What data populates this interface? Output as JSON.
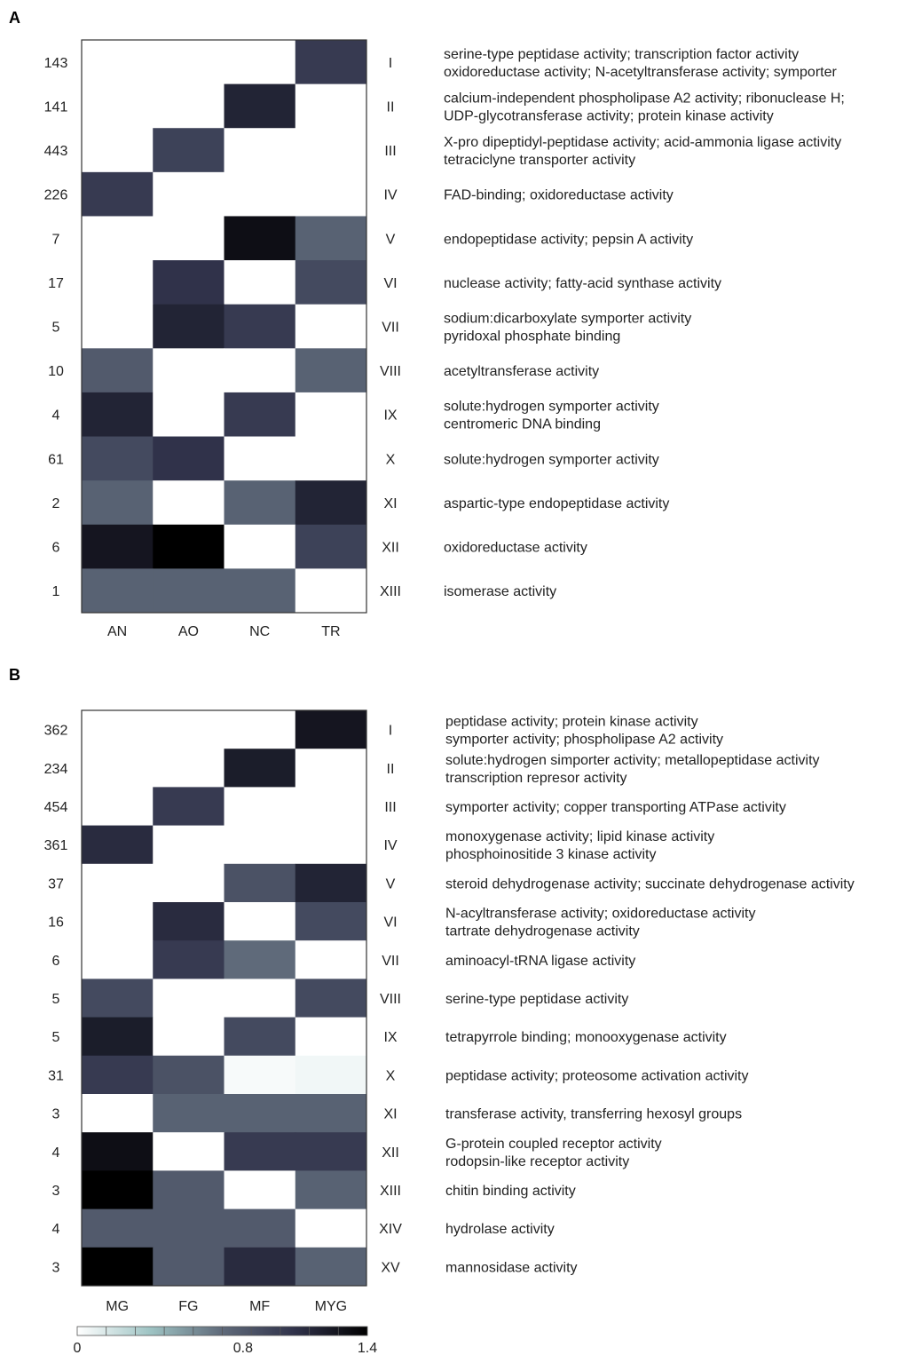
{
  "chart_data": [
    {
      "type": "heatmap",
      "panel": "A",
      "columns": [
        "AN",
        "AO",
        "NC",
        "TR"
      ],
      "rows": [
        {
          "cluster": "I",
          "count": "143",
          "values": [
            0,
            0,
            0,
            1.0
          ],
          "annotation": [
            "serine-type peptidase activity; transcription factor activity",
            "oxidoreductase activity; N-acetyltransferase activity; symporter"
          ]
        },
        {
          "cluster": "II",
          "count": "141",
          "values": [
            0,
            0,
            1.15,
            0
          ],
          "annotation": [
            "calcium-independent phospholipase A2 activity; ribonuclease H;",
            "UDP-glycotransferase activity; protein kinase activity"
          ]
        },
        {
          "cluster": "III",
          "count": "443",
          "values": [
            0,
            0.95,
            0,
            0
          ],
          "annotation": [
            "X-pro dipeptidyl-peptidase activity; acid-ammonia ligase activity",
            "tetraciclyne transporter activity"
          ]
        },
        {
          "cluster": "IV",
          "count": "226",
          "values": [
            1.0,
            0,
            0,
            0
          ],
          "annotation": [
            "FAD-binding; oxidoreductase activity"
          ]
        },
        {
          "cluster": "V",
          "count": "7",
          "values": [
            0,
            0,
            1.3,
            0.75
          ],
          "annotation": [
            "endopeptidase activity; pepsin A activity"
          ]
        },
        {
          "cluster": "VI",
          "count": "17",
          "values": [
            0,
            1.05,
            0,
            0.9
          ],
          "annotation": [
            "nuclease activity; fatty-acid synthase activity"
          ]
        },
        {
          "cluster": "VII",
          "count": "5",
          "values": [
            0,
            1.15,
            1.0,
            0
          ],
          "annotation": [
            "sodium:dicarboxylate symporter activity",
            "pyridoxal phosphate binding"
          ]
        },
        {
          "cluster": "VIII",
          "count": "10",
          "values": [
            0.8,
            0,
            0,
            0.75
          ],
          "annotation": [
            "acetyltransferase activity"
          ]
        },
        {
          "cluster": "IX",
          "count": "4",
          "values": [
            1.15,
            0,
            1.0,
            0
          ],
          "annotation": [
            "solute:hydrogen symporter activity",
            "centromeric DNA binding"
          ]
        },
        {
          "cluster": "X",
          "count": "61",
          "values": [
            0.9,
            1.05,
            0,
            0
          ],
          "annotation": [
            "solute:hydrogen symporter activity"
          ]
        },
        {
          "cluster": "XI",
          "count": "2",
          "values": [
            0.75,
            0,
            0.75,
            1.15
          ],
          "annotation": [
            "aspartic-type endopeptidase activity"
          ]
        },
        {
          "cluster": "XII",
          "count": "6",
          "values": [
            1.25,
            1.4,
            0,
            0.95
          ],
          "annotation": [
            "oxidoreductase activity"
          ]
        },
        {
          "cluster": "XIII",
          "count": "1",
          "values": [
            0.75,
            0.75,
            0.75,
            0
          ],
          "annotation": [
            "isomerase activity"
          ]
        }
      ]
    },
    {
      "type": "heatmap",
      "panel": "B",
      "columns": [
        "MG",
        "FG",
        "MF",
        "MYG"
      ],
      "rows": [
        {
          "cluster": "I",
          "count": "362",
          "values": [
            0,
            0,
            0,
            1.25
          ],
          "annotation": [
            "peptidase activity; protein kinase activity",
            "symporter activity; phospholipase A2 activity"
          ]
        },
        {
          "cluster": "II",
          "count": "234",
          "values": [
            0,
            0,
            1.2,
            0
          ],
          "annotation": [
            "solute:hydrogen simporter activity; metallopeptidase activity",
            "transcription represor activity"
          ]
        },
        {
          "cluster": "III",
          "count": "454",
          "values": [
            0,
            1.0,
            0,
            0
          ],
          "annotation": [
            "symporter activity; copper transporting ATPase activity"
          ]
        },
        {
          "cluster": "IV",
          "count": "361",
          "values": [
            1.1,
            0,
            0,
            0
          ],
          "annotation": [
            "monoxygenase activity; lipid kinase activity",
            "phosphoinositide 3 kinase activity"
          ]
        },
        {
          "cluster": "V",
          "count": "37",
          "values": [
            0,
            0,
            0.85,
            1.15
          ],
          "annotation": [
            "steroid dehydrogenase activity; succinate dehydrogenase activity"
          ]
        },
        {
          "cluster": "VI",
          "count": "16",
          "values": [
            0,
            1.1,
            0,
            0.9
          ],
          "annotation": [
            "N-acyltransferase activity; oxidoreductase activity",
            "tartrate dehydrogenase activity"
          ]
        },
        {
          "cluster": "VII",
          "count": "6",
          "values": [
            0,
            1.0,
            0.7,
            0
          ],
          "annotation": [
            "aminoacyl-tRNA ligase activity"
          ]
        },
        {
          "cluster": "VIII",
          "count": "5",
          "values": [
            0.9,
            0,
            0,
            0.9
          ],
          "annotation": [
            "serine-type peptidase activity"
          ]
        },
        {
          "cluster": "IX",
          "count": "5",
          "values": [
            1.2,
            0,
            0.9,
            0
          ],
          "annotation": [
            "tetrapyrrole binding; monooxygenase activity"
          ]
        },
        {
          "cluster": "X",
          "count": "31",
          "values": [
            1.0,
            0.85,
            0.03,
            0.05
          ],
          "annotation": [
            "peptidase activity; proteosome activation activity"
          ]
        },
        {
          "cluster": "XI",
          "count": "3",
          "values": [
            0,
            0.75,
            0.75,
            0.75
          ],
          "annotation": [
            "transferase activity, transferring hexosyl groups"
          ]
        },
        {
          "cluster": "XII",
          "count": "4",
          "values": [
            1.3,
            0,
            1.0,
            1.0
          ],
          "annotation": [
            "G-protein coupled receptor activity",
            "rodopsin-like receptor activity"
          ]
        },
        {
          "cluster": "XIII",
          "count": "3",
          "values": [
            1.4,
            0.8,
            0,
            0.75
          ],
          "annotation": [
            "chitin binding activity"
          ]
        },
        {
          "cluster": "XIV",
          "count": "4",
          "values": [
            0.8,
            0.8,
            0.8,
            0
          ],
          "annotation": [
            "hydrolase activity"
          ]
        },
        {
          "cluster": "XV",
          "count": "3",
          "values": [
            1.4,
            0.8,
            1.1,
            0.75
          ],
          "annotation": [
            "mannosidase activity"
          ]
        }
      ]
    }
  ],
  "colorbar": {
    "min": 0,
    "max": 1.4,
    "tick_labels": [
      "0",
      "0.8",
      "1.4"
    ],
    "tick_values": [
      0,
      0.8,
      1.4
    ],
    "colors": [
      "#ffffff",
      "#9fc4c4",
      "#5f6a7a",
      "#30324a",
      "#000000"
    ]
  }
}
